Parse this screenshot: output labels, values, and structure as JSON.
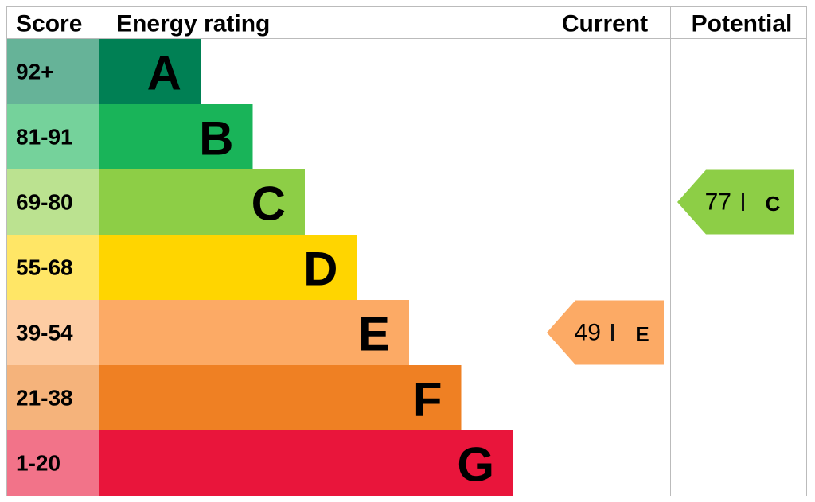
{
  "chart_data": {
    "type": "epc",
    "headers": {
      "score": "Score",
      "rating": "Energy rating",
      "current": "Current",
      "potential": "Potential"
    },
    "bands": [
      {
        "score": "92+",
        "letter": "A",
        "color": "#008054"
      },
      {
        "score": "81-91",
        "letter": "B",
        "color": "#19b459"
      },
      {
        "score": "69-80",
        "letter": "C",
        "color": "#8dce46"
      },
      {
        "score": "55-68",
        "letter": "D",
        "color": "#ffd500"
      },
      {
        "score": "39-54",
        "letter": "E",
        "color": "#fcaa65"
      },
      {
        "score": "21-38",
        "letter": "F",
        "color": "#ef8023"
      },
      {
        "score": "1-20",
        "letter": "G",
        "color": "#e9153b"
      }
    ],
    "current": {
      "value": 49,
      "rating": "E"
    },
    "potential": {
      "value": 77,
      "rating": "C"
    }
  }
}
